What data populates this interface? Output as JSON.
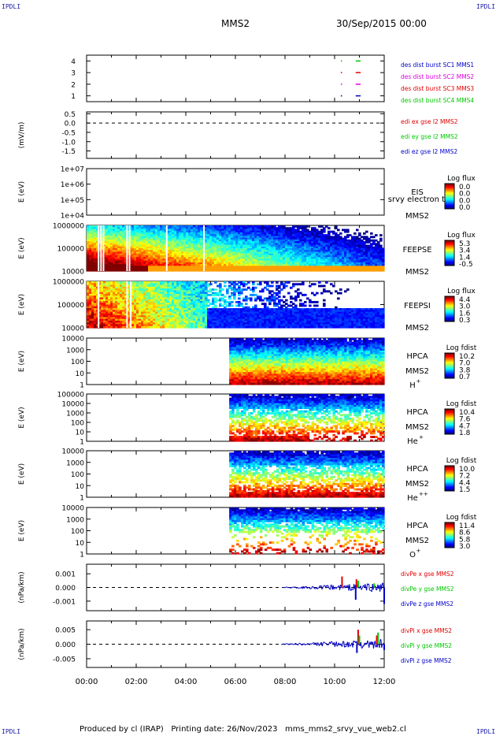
{
  "header": {
    "corner_label": "IPDLI",
    "mission": "MMS2",
    "datetime": "30/Sep/2015 00:00"
  },
  "footer": {
    "text": "Produced by cl (IRAP)   Printing date: 26/Nov/2023   mms_mms2_srvy_vue_web2.cl"
  },
  "chart_data": [
    {
      "type": "scatter",
      "id": "burst",
      "x_ticks": [
        "00:00",
        "02:00",
        "04:00",
        "06:00",
        "08:00",
        "10:00",
        "12:00"
      ],
      "xlim_hours": [
        0,
        12
      ],
      "ylim": [
        0.5,
        4.5
      ],
      "y_ticks": [
        "1",
        "2",
        "3",
        "4"
      ],
      "legend": [
        {
          "name": "des dist burst SC1 MMS1",
          "color": "#0000c8"
        },
        {
          "name": "des dist burst SC2 MMS2",
          "color": "#e000e0"
        },
        {
          "name": "des dist burst SC3 MMS3",
          "color": "#e00000"
        },
        {
          "name": "des dist burst SC4 MMS4",
          "color": "#00c800"
        }
      ],
      "marks": [
        {
          "sc": 4,
          "start_h": 10.25,
          "end_h": 10.3
        },
        {
          "sc": 4,
          "start_h": 10.85,
          "end_h": 11.05
        },
        {
          "sc": 3,
          "start_h": 10.25,
          "end_h": 10.3
        },
        {
          "sc": 3,
          "start_h": 10.85,
          "end_h": 11.05
        },
        {
          "sc": 2,
          "start_h": 10.25,
          "end_h": 10.3
        },
        {
          "sc": 2,
          "start_h": 10.85,
          "end_h": 11.05
        },
        {
          "sc": 1,
          "start_h": 10.25,
          "end_h": 10.3
        },
        {
          "sc": 1,
          "start_h": 10.85,
          "end_h": 11.05
        }
      ]
    },
    {
      "type": "line",
      "id": "edi",
      "ylabel": "(mV/m)",
      "ylim": [
        -1.9,
        0.6
      ],
      "y_ticks": [
        "0.5",
        "0.0",
        "-0.5",
        "-1.0",
        "-1.5"
      ],
      "y_tick_values": [
        0.5,
        0.0,
        -0.5,
        -1.0,
        -1.5
      ],
      "zero_line": true,
      "series": [
        {
          "name": "edi ex gse l2 MMS2",
          "color": "#e00000",
          "values": []
        },
        {
          "name": "edi ey gse l2 MMS2",
          "color": "#00c800",
          "values": []
        },
        {
          "name": "edi ez gse l2 MMS2",
          "color": "#0000c8",
          "values": []
        }
      ]
    },
    {
      "type": "heatmap",
      "id": "eis",
      "ylabel": "E (eV)",
      "y_ticks": [
        "1e+07",
        "1e+06",
        "1e+05",
        "1e+04"
      ],
      "log_ylim": [
        4,
        7
      ],
      "instrument": "EIS",
      "overlay_text": "srvy electron to",
      "spacecraft": "MMS2",
      "colorbar": {
        "title": "Log flux",
        "ticks": [
          "0.0",
          "0.0",
          "0.0",
          "0.0"
        ]
      },
      "empty": true
    },
    {
      "type": "heatmap",
      "id": "feepse",
      "ylabel": "E (eV)",
      "y_ticks": [
        "1000000",
        "100000",
        "10000"
      ],
      "log_ylim": [
        4,
        6
      ],
      "instrument": "FEEPSE",
      "spacecraft": "MMS2",
      "colorbar": {
        "title": "Log flux",
        "ticks": [
          "5.3",
          "3.4",
          "1.4",
          "-0.5"
        ]
      },
      "data_start_h": 0,
      "data_end_h": 12,
      "gaps_h": [
        0.45,
        0.55,
        0.65,
        1.6,
        1.7,
        3.2,
        4.7
      ]
    },
    {
      "type": "heatmap",
      "id": "feepsi",
      "ylabel": "E (eV)",
      "y_ticks": [
        "1000000",
        "100000",
        "10000"
      ],
      "log_ylim": [
        4,
        6
      ],
      "instrument": "FEEPSI",
      "spacecraft": "MMS2",
      "colorbar": {
        "title": "Log flux",
        "ticks": [
          "4.4",
          "3.0",
          "1.6",
          "0.3"
        ]
      },
      "data_start_h": 0,
      "data_end_h": 12,
      "gaps_h": [
        0.45,
        1.6,
        1.75
      ]
    },
    {
      "type": "heatmap",
      "id": "hpca-h",
      "ylabel": "E (eV)",
      "y_ticks": [
        "10000",
        "1000",
        "100",
        "10",
        "1"
      ],
      "log_ylim": [
        0,
        4.5
      ],
      "instrument": "HPCA",
      "spacecraft": "MMS2",
      "species": "H",
      "species_sup": "+",
      "colorbar": {
        "title": "Log fdist",
        "ticks": [
          "10.2",
          "7.0",
          "3.8",
          "0.7"
        ]
      },
      "data_start_h": 5.75,
      "data_end_h": 12
    },
    {
      "type": "heatmap",
      "id": "hpca-he",
      "ylabel": "E (eV)",
      "y_ticks": [
        "100000",
        "10000",
        "1000",
        "100",
        "10",
        "1"
      ],
      "log_ylim": [
        0,
        5
      ],
      "instrument": "HPCA",
      "spacecraft": "MMS2",
      "species": "He",
      "species_sup": "+",
      "colorbar": {
        "title": "Log fdist",
        "ticks": [
          "10.4",
          "7.6",
          "4.7",
          "1.8"
        ]
      },
      "data_start_h": 5.75,
      "data_end_h": 12
    },
    {
      "type": "heatmap",
      "id": "hpca-he2",
      "ylabel": "E (eV)",
      "y_ticks": [
        "10000",
        "1000",
        "100",
        "10",
        "1"
      ],
      "log_ylim": [
        0,
        4.5
      ],
      "instrument": "HPCA",
      "spacecraft": "MMS2",
      "species": "He",
      "species_sup": "++",
      "colorbar": {
        "title": "Log fdist",
        "ticks": [
          "10.0",
          "7.2",
          "4.4",
          "1.5"
        ]
      },
      "data_start_h": 5.75,
      "data_end_h": 12
    },
    {
      "type": "heatmap",
      "id": "hpca-o",
      "ylabel": "E (eV)",
      "y_ticks": [
        "10000",
        "1000",
        "100",
        "10",
        "1"
      ],
      "log_ylim": [
        0,
        4.5
      ],
      "instrument": "HPCA",
      "spacecraft": "MMS2",
      "species": "O",
      "species_sup": "+",
      "colorbar": {
        "title": "Log fdist",
        "ticks": [
          "11.4",
          "8.6",
          "5.8",
          "3.0"
        ]
      },
      "data_start_h": 5.75,
      "data_end_h": 12
    },
    {
      "type": "line",
      "id": "divpe",
      "ylabel": "(nPa/km)",
      "ylim": [
        -0.0017,
        0.0017
      ],
      "y_ticks": [
        "0.001",
        "0.000",
        "-0.001"
      ],
      "y_tick_values": [
        0.001,
        0.0,
        -0.001
      ],
      "zero_line": true,
      "data_start_h": 7.9,
      "series": [
        {
          "name": "divPe x gse MMS2",
          "color": "#e00000",
          "values": [
            [
              10.3,
              0.0008
            ],
            [
              10.88,
              0.0006
            ]
          ]
        },
        {
          "name": "divPe y gse MMS2",
          "color": "#00c800",
          "values": [
            [
              10.95,
              0.0005
            ],
            [
              11.6,
              0.0003
            ]
          ]
        },
        {
          "name": "divPe z gse MMS2",
          "color": "#0000c8",
          "values": [
            [
              10.85,
              -0.0009
            ],
            [
              12.0,
              -0.0012
            ]
          ]
        }
      ]
    },
    {
      "type": "line",
      "id": "divpi",
      "ylabel": "(nPa/km)",
      "ylim": [
        -0.008,
        0.008
      ],
      "y_ticks": [
        "0.005",
        "0.000",
        "-0.005"
      ],
      "y_tick_values": [
        0.005,
        0.0,
        -0.005
      ],
      "zero_line": true,
      "data_start_h": 7.85,
      "series": [
        {
          "name": "divPi x gse MMS2",
          "color": "#e00000",
          "values": [
            [
              10.95,
              0.005
            ],
            [
              11.7,
              0.003
            ]
          ]
        },
        {
          "name": "divPi y gse MMS2",
          "color": "#00c800",
          "values": [
            [
              11.0,
              0.003
            ],
            [
              11.75,
              0.004
            ]
          ]
        },
        {
          "name": "divPi z gse MMS2",
          "color": "#0000c8",
          "values": [
            [
              10.9,
              -0.003
            ],
            [
              12.0,
              -0.002
            ]
          ]
        }
      ]
    }
  ]
}
